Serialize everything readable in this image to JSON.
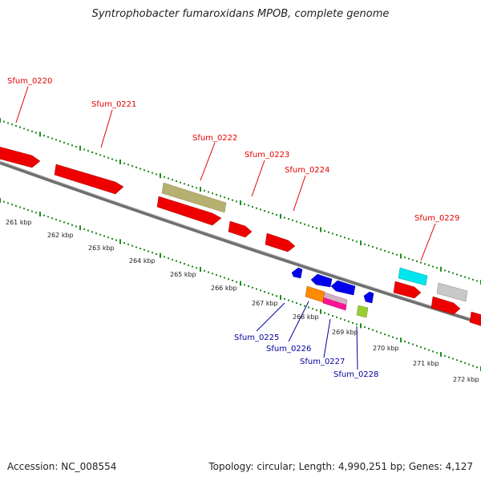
{
  "title": "Syntrophobacter fumaroxidans MPOB, complete genome",
  "footer": {
    "accession": "Accession: NC_008554",
    "stats": "Topology: circular; Length: 4,990,251 bp; Genes: 4,127"
  },
  "colors": {
    "forward_label": "#e60000",
    "reverse_label": "#00009c",
    "tick": "#1e8c1e",
    "backbone": "#777777"
  },
  "scale_labels": [
    "261 kbp",
    "262 kbp",
    "263 kbp",
    "264 kbp",
    "265 kbp",
    "266 kbp",
    "267 kbp",
    "268 kbp",
    "269 kbp",
    "270 kbp",
    "271 kbp",
    "272 kbp"
  ],
  "genes_forward": [
    "Sfum_0220",
    "Sfum_0221",
    "Sfum_0222",
    "Sfum_0223",
    "Sfum_0224",
    "Sfum_0229"
  ],
  "genes_reverse": [
    "Sfum_0225",
    "Sfum_0226",
    "Sfum_0227",
    "Sfum_0228"
  ]
}
